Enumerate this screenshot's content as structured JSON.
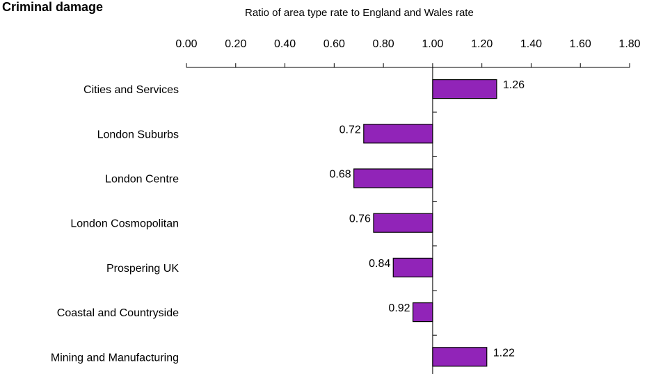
{
  "chart_data": {
    "type": "bar",
    "orientation": "horizontal",
    "title": ") Criminal damage",
    "xlabel": "Ratio of area type rate to England and Wales rate",
    "ylabel": "",
    "xlim": [
      0,
      1.8
    ],
    "baseline": 1.0,
    "ticks": [
      "0.00",
      "0.20",
      "0.40",
      "0.60",
      "0.80",
      "1.00",
      "1.20",
      "1.40",
      "1.60",
      "1.80"
    ],
    "categories": [
      "Cities and Services",
      "London Suburbs",
      "London Centre",
      "London Cosmopolitan",
      "Prospering UK",
      "Coastal and Countryside",
      "Mining and Manufacturing"
    ],
    "values": [
      1.26,
      0.72,
      0.68,
      0.76,
      0.84,
      0.92,
      1.22
    ],
    "value_labels": [
      "1.26",
      "0.72",
      "0.68",
      "0.76",
      "0.84",
      "0.92",
      "1.22"
    ],
    "bar_color": "#9124b8",
    "bar_border": "#000000",
    "grid": false
  }
}
